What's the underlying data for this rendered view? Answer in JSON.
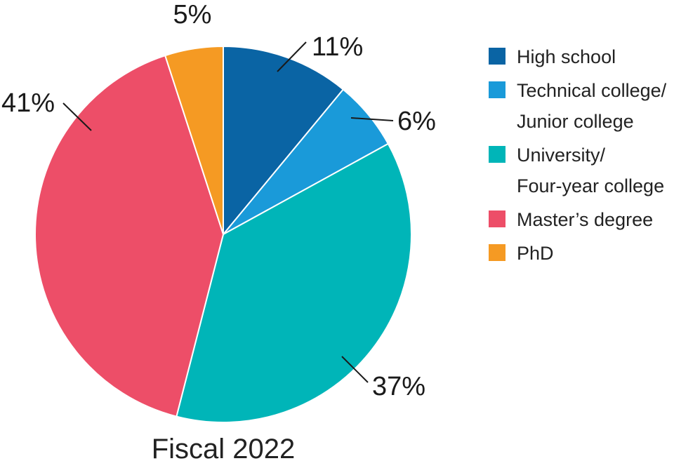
{
  "chart_data": {
    "type": "pie",
    "title": "",
    "caption": "Fiscal 2022",
    "slices": [
      {
        "label": "High school",
        "value": 11,
        "display": "11%",
        "color": "#0a64a4"
      },
      {
        "label": "Technical college/\nJunior college",
        "value": 6,
        "display": "6%",
        "color": "#1a9ad9"
      },
      {
        "label": "University/\nFour-year college",
        "value": 37,
        "display": "37%",
        "color": "#00b5b8"
      },
      {
        "label": "Master’s degree",
        "value": 41,
        "display": "41%",
        "color": "#ed4e68"
      },
      {
        "label": "PhD",
        "value": 5,
        "display": "5%",
        "color": "#f59a23"
      }
    ],
    "legend_position": "right"
  }
}
